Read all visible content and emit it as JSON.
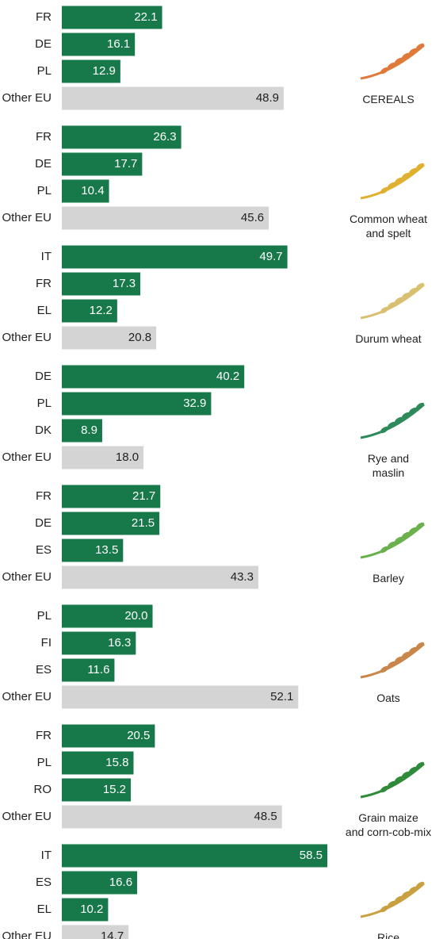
{
  "chart_data": [
    {
      "type": "bar",
      "title": "CEREALS",
      "categories": [
        "FR",
        "DE",
        "PL",
        "Other EU"
      ],
      "values": [
        22.1,
        16.1,
        12.9,
        48.9
      ],
      "value_labels": [
        "22.1",
        "16.1",
        "12.9",
        "48.9"
      ],
      "colors": [
        "#17794a",
        "#17794a",
        "#17794a",
        "#d4d4d4"
      ]
    },
    {
      "type": "bar",
      "title": "Common wheat\nand spelt",
      "categories": [
        "FR",
        "DE",
        "PL",
        "Other EU"
      ],
      "values": [
        26.3,
        17.7,
        10.4,
        45.6
      ],
      "value_labels": [
        "26.3",
        "17.7",
        "10.4",
        "45.6"
      ],
      "colors": [
        "#17794a",
        "#17794a",
        "#17794a",
        "#d4d4d4"
      ]
    },
    {
      "type": "bar",
      "title": "Durum wheat",
      "categories": [
        "IT",
        "FR",
        "EL",
        "Other EU"
      ],
      "values": [
        49.7,
        17.3,
        12.2,
        20.8
      ],
      "value_labels": [
        "49.7",
        "17.3",
        "12.2",
        "20.8"
      ],
      "colors": [
        "#17794a",
        "#17794a",
        "#17794a",
        "#d4d4d4"
      ]
    },
    {
      "type": "bar",
      "title": "Rye and\nmaslin",
      "categories": [
        "DE",
        "PL",
        "DK",
        "Other EU"
      ],
      "values": [
        40.2,
        32.9,
        8.9,
        18.0
      ],
      "value_labels": [
        "40.2",
        "32.9",
        "8.9",
        "18.0"
      ],
      "colors": [
        "#17794a",
        "#17794a",
        "#17794a",
        "#d4d4d4"
      ]
    },
    {
      "type": "bar",
      "title": "Barley",
      "categories": [
        "FR",
        "DE",
        "ES",
        "Other EU"
      ],
      "values": [
        21.7,
        21.5,
        13.5,
        43.3
      ],
      "value_labels": [
        "21.7",
        "21.5",
        "13.5",
        "43.3"
      ],
      "colors": [
        "#17794a",
        "#17794a",
        "#17794a",
        "#d4d4d4"
      ]
    },
    {
      "type": "bar",
      "title": "Oats",
      "categories": [
        "PL",
        "FI",
        "ES",
        "Other EU"
      ],
      "values": [
        20.0,
        16.3,
        11.6,
        52.1
      ],
      "value_labels": [
        "20.0",
        "16.3",
        "11.6",
        "52.1"
      ],
      "colors": [
        "#17794a",
        "#17794a",
        "#17794a",
        "#d4d4d4"
      ]
    },
    {
      "type": "bar",
      "title": "Grain maize\nand corn-cob-mix",
      "categories": [
        "FR",
        "PL",
        "RO",
        "Other EU"
      ],
      "values": [
        20.5,
        15.8,
        15.2,
        48.5
      ],
      "value_labels": [
        "20.5",
        "15.8",
        "15.2",
        "48.5"
      ],
      "colors": [
        "#17794a",
        "#17794a",
        "#17794a",
        "#d4d4d4"
      ]
    },
    {
      "type": "bar",
      "title": "Rice",
      "categories": [
        "IT",
        "ES",
        "EL",
        "Other EU"
      ],
      "values": [
        58.5,
        16.6,
        10.2,
        14.7
      ],
      "value_labels": [
        "58.5",
        "16.6",
        "10.2",
        "14.7"
      ],
      "colors": [
        "#17794a",
        "#17794a",
        "#17794a",
        "#d4d4d4"
      ]
    }
  ]
}
